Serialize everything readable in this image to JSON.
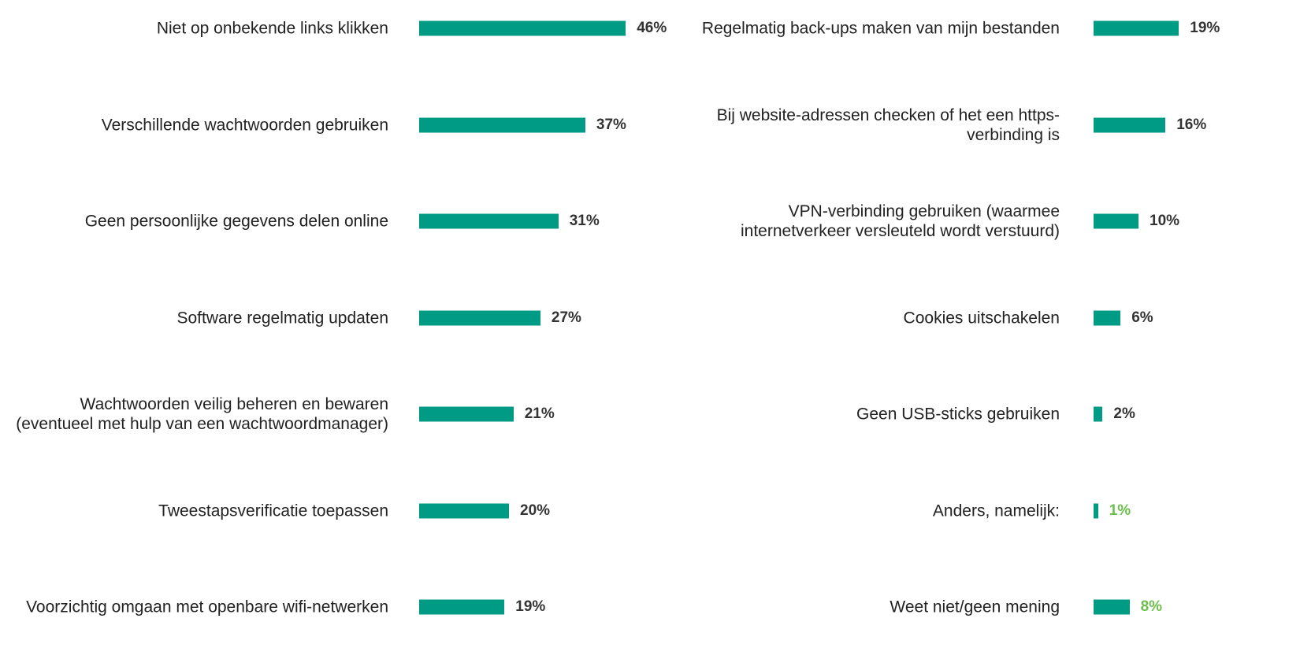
{
  "chart_data": [
    {
      "type": "bar",
      "orientation": "horizontal",
      "color": "#009b84",
      "categories": [
        "Niet op onbekende links klikken",
        "Verschillende wachtwoorden gebruiken",
        "Geen persoonlijke gegevens delen online",
        "Software regelmatig updaten",
        "Wachtwoorden veilig beheren en bewaren (eventueel met hulp van een wachtwoordmanager)",
        "Tweestapsverificatie toepassen",
        "Voorzichtig omgaan met openbare wifi-netwerken"
      ],
      "values": [
        46,
        37,
        31,
        27,
        21,
        20,
        19
      ],
      "value_labels": [
        "46%",
        "37%",
        "31%",
        "27%",
        "21%",
        "20%",
        "19%"
      ],
      "value_label_colors": [
        "#333333",
        "#333333",
        "#333333",
        "#333333",
        "#333333",
        "#333333",
        "#333333"
      ]
    },
    {
      "type": "bar",
      "orientation": "horizontal",
      "color": "#009b84",
      "categories": [
        "Regelmatig back-ups maken van mijn bestanden",
        "Bij website-adressen checken of het een https-verbinding is",
        "VPN-verbinding gebruiken (waarmee internetverkeer versleuteld wordt verstuurd)",
        "Cookies uitschakelen",
        "Geen USB-sticks gebruiken",
        "Anders, namelijk:",
        "Weet niet/geen mening"
      ],
      "values": [
        19,
        16,
        10,
        6,
        2,
        1,
        8
      ],
      "value_labels": [
        "19%",
        "16%",
        "10%",
        "6%",
        "2%",
        "1%",
        "8%"
      ],
      "value_label_colors": [
        "#333333",
        "#333333",
        "#333333",
        "#333333",
        "#333333",
        "#6cc04a",
        "#6cc04a"
      ]
    }
  ]
}
